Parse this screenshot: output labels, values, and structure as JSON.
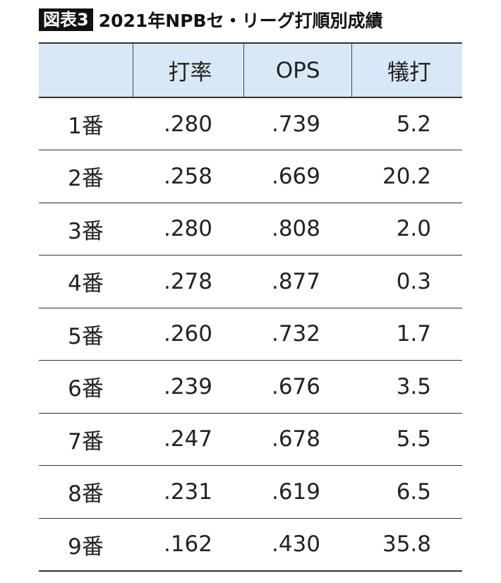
{
  "header": {
    "badge": "図表3",
    "title": "2021年NPBセ・リーグ打順別成績"
  },
  "table": {
    "columns": [
      "打率",
      "OPS",
      "犠打"
    ],
    "rows": [
      [
        "1番",
        ".280",
        ".739",
        "5.2"
      ],
      [
        "2番",
        ".258",
        ".669",
        "20.2"
      ],
      [
        "3番",
        ".280",
        ".808",
        "2.0"
      ],
      [
        "4番",
        ".278",
        ".877",
        "0.3"
      ],
      [
        "5番",
        ".260",
        ".732",
        "1.7"
      ],
      [
        "6番",
        ".239",
        ".676",
        "3.5"
      ],
      [
        "7番",
        ".247",
        ".678",
        "5.5"
      ],
      [
        "8番",
        ".231",
        ".619",
        "6.5"
      ],
      [
        "9番",
        ".162",
        ".430",
        "35.8"
      ]
    ]
  }
}
